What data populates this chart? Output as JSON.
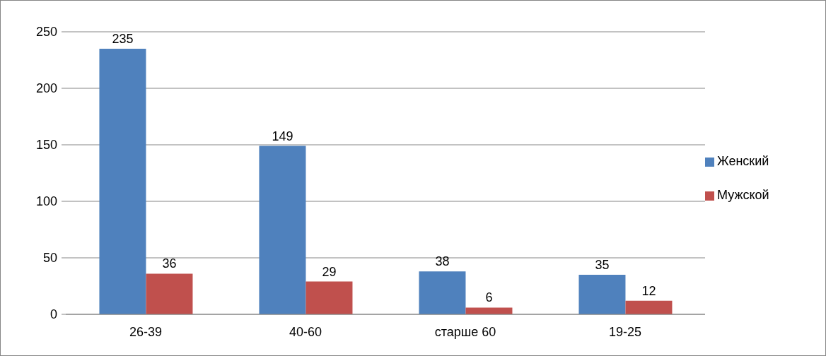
{
  "chart_data": {
    "type": "bar",
    "categories": [
      "26-39",
      "40-60",
      "старше 60",
      "19-25"
    ],
    "series": [
      {
        "name": "Женский",
        "color": "#4f81bd",
        "values": [
          235,
          149,
          38,
          35
        ]
      },
      {
        "name": "Мужской",
        "color": "#c0504d",
        "values": [
          36,
          29,
          6,
          12
        ]
      }
    ],
    "ylim": [
      0,
      250
    ],
    "yticks": [
      0,
      50,
      100,
      150,
      200,
      250
    ],
    "grid": "y",
    "legend": "right",
    "data_labels": true
  }
}
